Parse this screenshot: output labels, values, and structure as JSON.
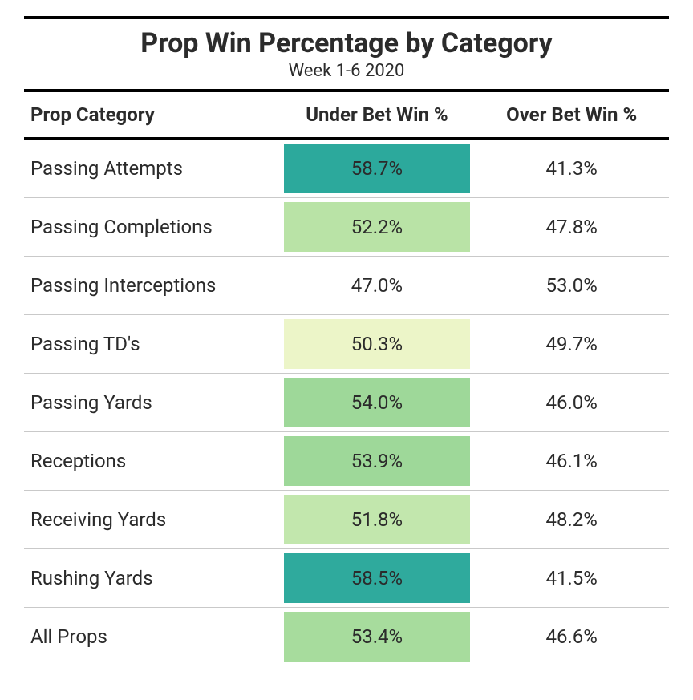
{
  "title": "Prop Win Percentage by Category",
  "subtitle": "Week 1-6 2020",
  "columns": [
    "Prop Category",
    "Under Bet Win %",
    "Over Bet Win %"
  ],
  "background_color": "#ffffff",
  "text_color": "#2b2b2b",
  "border_color_heavy": "#000000",
  "border_color_light": "#c9c9c9",
  "title_fontsize": 34,
  "header_fontsize": 24,
  "cell_fontsize": 24,
  "rows": [
    {
      "category": "Passing Attempts",
      "under": "58.7%",
      "under_bg": "#2ca99c",
      "over": "41.3%",
      "over_bg": "#ffffff"
    },
    {
      "category": "Passing Completions",
      "under": "52.2%",
      "under_bg": "#b9e3a6",
      "over": "47.8%",
      "over_bg": "#ffffff"
    },
    {
      "category": "Passing Interceptions",
      "under": "47.0%",
      "under_bg": "#ffffff",
      "over": "53.0%",
      "over_bg": "#ffffff"
    },
    {
      "category": "Passing TD's",
      "under": "50.3%",
      "under_bg": "#ecf5c8",
      "over": "49.7%",
      "over_bg": "#ffffff"
    },
    {
      "category": "Passing Yards",
      "under": "54.0%",
      "under_bg": "#9ed899",
      "over": "46.0%",
      "over_bg": "#ffffff"
    },
    {
      "category": "Receptions",
      "under": "53.9%",
      "under_bg": "#9ed899",
      "over": "46.1%",
      "over_bg": "#ffffff"
    },
    {
      "category": "Receiving Yards",
      "under": "51.8%",
      "under_bg": "#c2e7ad",
      "over": "48.2%",
      "over_bg": "#ffffff"
    },
    {
      "category": "Rushing Yards",
      "under": "58.5%",
      "under_bg": "#2faa9d",
      "over": "41.5%",
      "over_bg": "#ffffff"
    },
    {
      "category": "All Props",
      "under": "53.4%",
      "under_bg": "#a7dc9d",
      "over": "46.6%",
      "over_bg": "#ffffff"
    }
  ]
}
